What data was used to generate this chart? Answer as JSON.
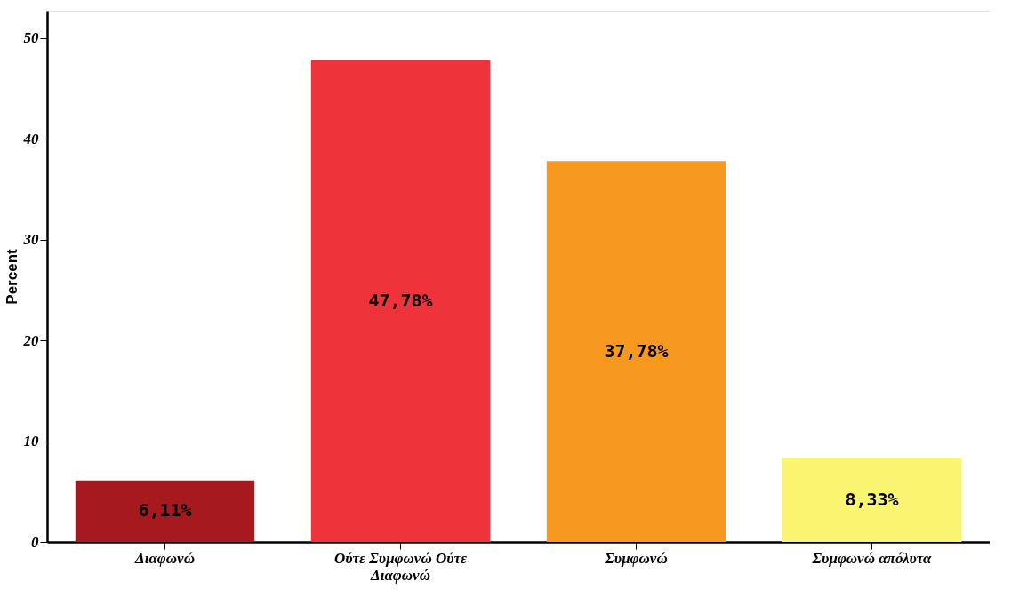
{
  "chart_data": {
    "type": "bar",
    "ylabel": "Percent",
    "categories": [
      "Διαφωνώ",
      "Ούτε Συμφωνώ Ούτε Διαφωνώ",
      "Συμφωνώ",
      "Συμφωνώ απόλυτα"
    ],
    "values": [
      6.11,
      47.78,
      37.78,
      8.33
    ],
    "colors": [
      "#a6191e",
      "#ef333a",
      "#f7991f",
      "#f9f571"
    ],
    "value_labels": [
      "6,11%",
      "47,78%",
      "37,78%",
      "8,33%"
    ],
    "ylim": [
      0,
      52.7
    ],
    "yticks": [
      0,
      10,
      20,
      30,
      40,
      50
    ],
    "grid": false
  }
}
